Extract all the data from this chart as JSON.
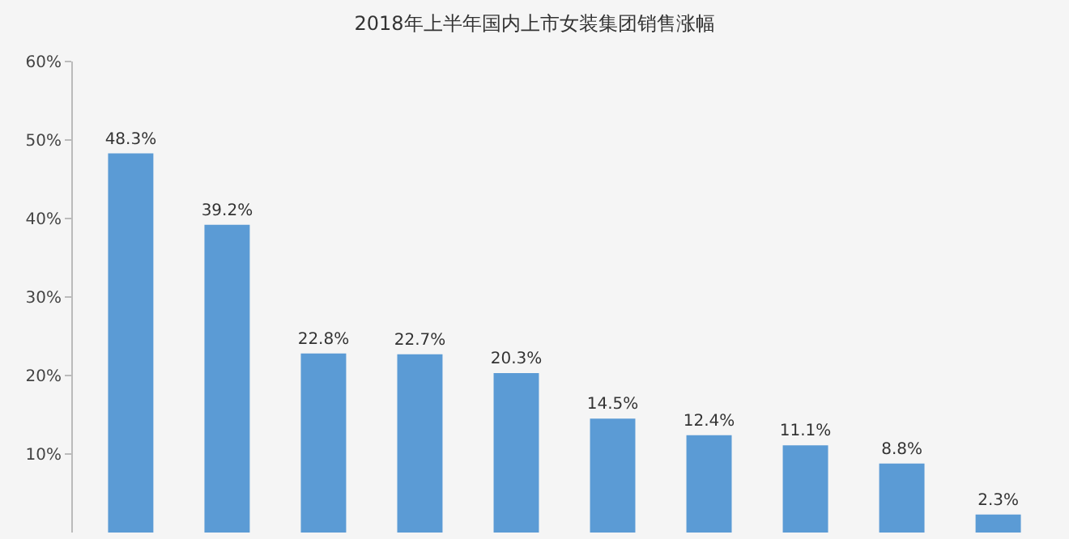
{
  "chart_data": {
    "type": "bar",
    "title": "2018年上半年国内上市女装集团销售涨幅",
    "categories": [
      null,
      null,
      null,
      null,
      null,
      null,
      null,
      null,
      null,
      null
    ],
    "values": [
      48.3,
      39.2,
      22.8,
      22.7,
      20.3,
      14.5,
      12.4,
      11.1,
      8.8,
      2.3
    ],
    "value_labels": [
      "48.3%",
      "39.2%",
      "22.8%",
      "22.7%",
      "20.3%",
      "14.5%",
      "12.4%",
      "11.1%",
      "8.8%",
      "2.3%"
    ],
    "color": "#5b9bd5",
    "ylim": [
      0,
      60
    ],
    "yticks": [
      {
        "value": 10,
        "label": "10%"
      },
      {
        "value": 20,
        "label": "20%"
      },
      {
        "value": 30,
        "label": "30%"
      },
      {
        "value": 40,
        "label": "40%"
      },
      {
        "value": 50,
        "label": "50%"
      },
      {
        "value": 60,
        "label": "60%"
      }
    ],
    "tick_labels": "y",
    "grid": false
  }
}
